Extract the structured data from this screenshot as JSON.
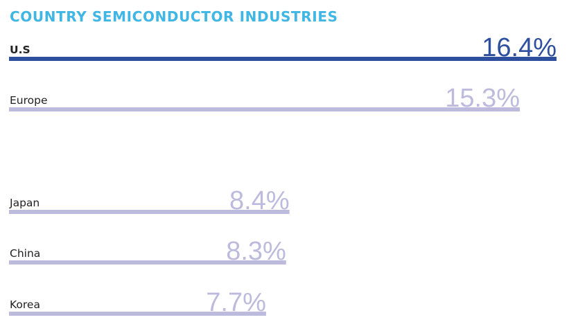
{
  "title": "COUNTRY SEMICONDUCTOR INDUSTRIES",
  "colors": {
    "title": "#3fb6e4",
    "highlight_bar": "#2e4f9e",
    "bar": "#bcbadd",
    "category_text": "#222222"
  },
  "chart_data": {
    "type": "bar",
    "orientation": "horizontal",
    "title": "COUNTRY SEMICONDUCTOR INDUSTRIES",
    "categories": [
      "U.S",
      "Europe",
      "Japan",
      "China",
      "Korea"
    ],
    "values": [
      16.4,
      15.3,
      8.4,
      8.3,
      7.7
    ],
    "value_labels": [
      "16.4%",
      "15.3%",
      "8.4%",
      "8.3%",
      "7.7%"
    ],
    "highlight_category": "U.S",
    "xlim": [
      0,
      16.4
    ],
    "grid": false,
    "legend": "none",
    "xlabel": "",
    "ylabel": ""
  }
}
